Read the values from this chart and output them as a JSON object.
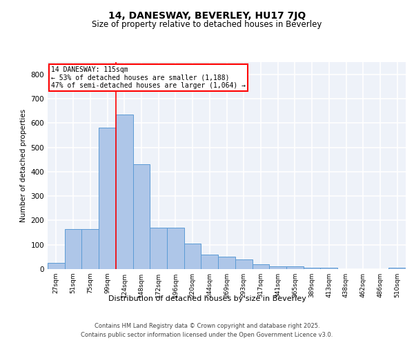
{
  "title": "14, DANESWAY, BEVERLEY, HU17 7JQ",
  "subtitle": "Size of property relative to detached houses in Beverley",
  "xlabel": "Distribution of detached houses by size in Beverley",
  "ylabel": "Number of detached properties",
  "categories": [
    "27sqm",
    "51sqm",
    "75sqm",
    "99sqm",
    "124sqm",
    "148sqm",
    "172sqm",
    "196sqm",
    "220sqm",
    "244sqm",
    "269sqm",
    "293sqm",
    "317sqm",
    "341sqm",
    "365sqm",
    "389sqm",
    "413sqm",
    "438sqm",
    "462sqm",
    "486sqm",
    "510sqm"
  ],
  "values": [
    25,
    165,
    165,
    580,
    635,
    430,
    170,
    170,
    105,
    60,
    50,
    40,
    20,
    10,
    10,
    5,
    5,
    0,
    0,
    0,
    5
  ],
  "bar_color": "#aec6e8",
  "bar_edge_color": "#5b9bd5",
  "annotation_text_line1": "14 DANESWAY: 115sqm",
  "annotation_text_line2": "← 53% of detached houses are smaller (1,188)",
  "annotation_text_line3": "47% of semi-detached houses are larger (1,064) →",
  "vline_color": "red",
  "vline_x": 3.5,
  "ylim": [
    0,
    850
  ],
  "yticks": [
    0,
    100,
    200,
    300,
    400,
    500,
    600,
    700,
    800
  ],
  "background_color": "#eef2f9",
  "grid_color": "white",
  "footer_line1": "Contains HM Land Registry data © Crown copyright and database right 2025.",
  "footer_line2": "Contains public sector information licensed under the Open Government Licence v3.0."
}
